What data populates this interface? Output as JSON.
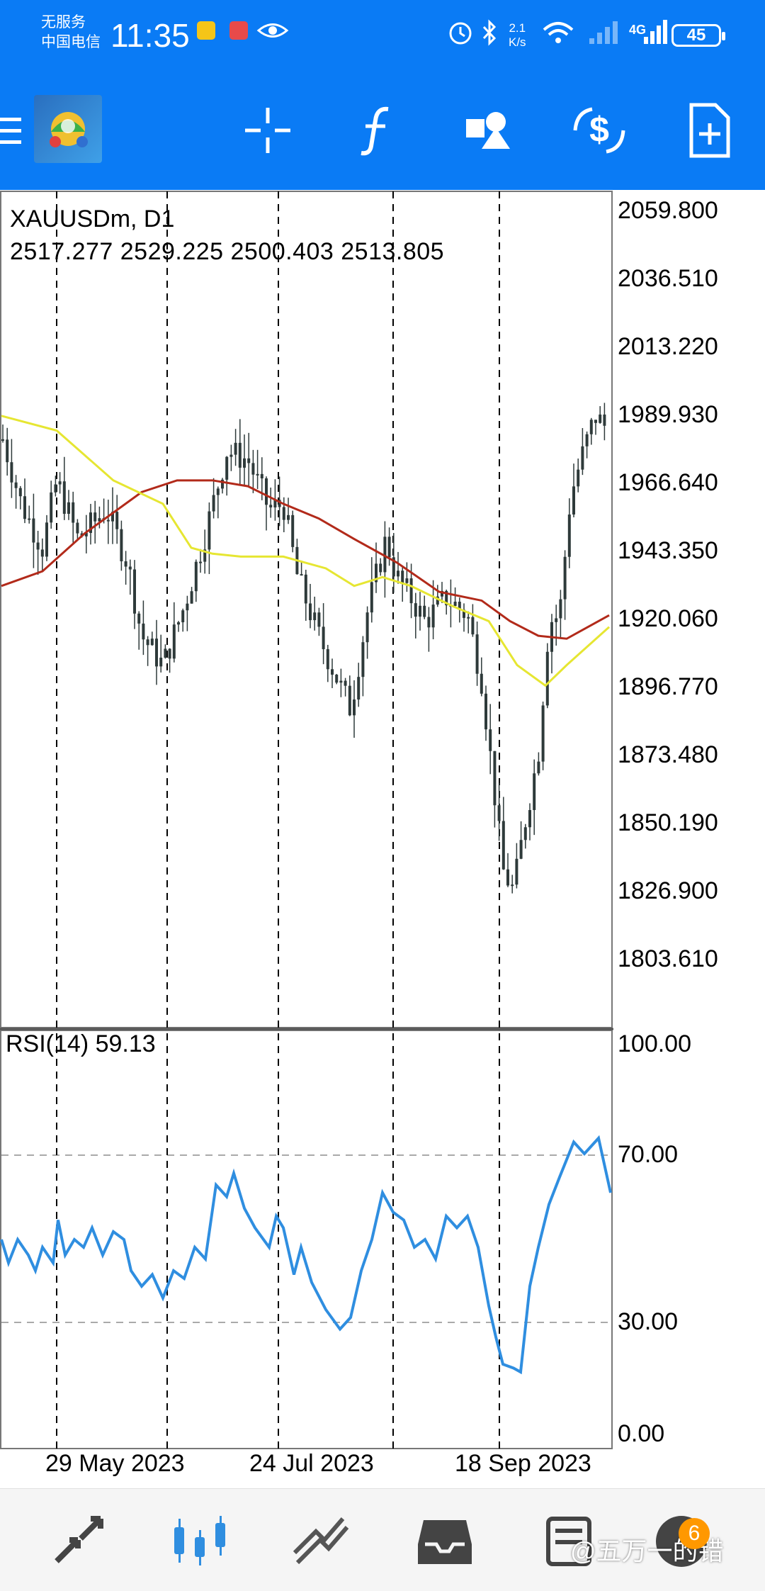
{
  "status_bar": {
    "carrier_line1": "无服务",
    "carrier_line2": "中国电信",
    "time": "11:35",
    "net_speed_value": "2.1",
    "net_speed_unit": "K/s",
    "network_type": "4G",
    "battery": "45"
  },
  "chart": {
    "symbol": "XAUUSDm, D1",
    "ohlc": "2517.277 2529.225 2500.403 2513.805",
    "price_axis": [
      "2059.800",
      "2036.510",
      "2013.220",
      "1989.930",
      "1966.640",
      "1943.350",
      "1920.060",
      "1896.770",
      "1873.480",
      "1850.190",
      "1826.900",
      "1803.610"
    ],
    "rsi_title": "RSI(14) 59.13",
    "rsi_axis": [
      "100.00",
      "70.00",
      "30.00",
      "0.00"
    ],
    "date_axis": [
      "29 May 2023",
      "24 Jul 2023",
      "18 Sep 2023"
    ],
    "colors": {
      "ma_fast": "#e6e632",
      "ma_slow": "#b22a1a",
      "rsi": "#2f8ee0",
      "candle": "#2e3a3a"
    }
  },
  "chart_data": {
    "type": "line",
    "title": "XAUUSDm, D1",
    "price_range": [
      1780,
      2070
    ],
    "series": [
      {
        "name": "RSI(14) 59.13",
        "ylim": [
          0,
          100
        ],
        "levels": [
          70,
          30
        ]
      }
    ]
  },
  "watermark": "@五万一的错",
  "badge": "6"
}
